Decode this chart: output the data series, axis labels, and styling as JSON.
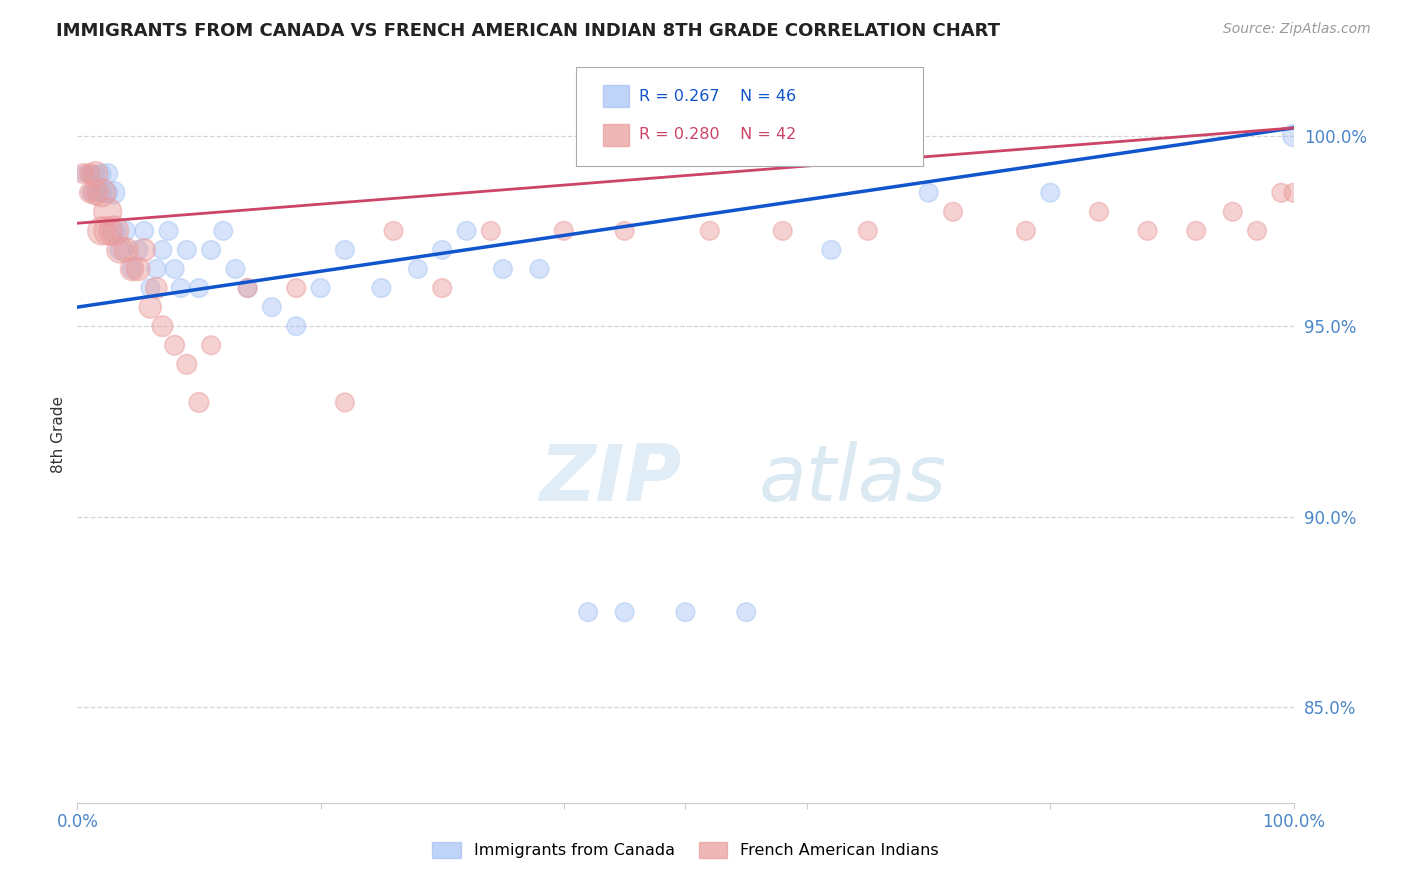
{
  "title": "IMMIGRANTS FROM CANADA VS FRENCH AMERICAN INDIAN 8TH GRADE CORRELATION CHART",
  "source": "Source: ZipAtlas.com",
  "ylabel": "8th Grade",
  "xlim": [
    0.0,
    1.0
  ],
  "ylim": [
    0.825,
    1.018
  ],
  "blue_R": 0.267,
  "blue_N": 46,
  "pink_R": 0.28,
  "pink_N": 42,
  "blue_color": "#a4c2f4",
  "pink_color": "#ea9999",
  "blue_line_color": "#1155cc",
  "pink_line_color": "#cc4466",
  "yticks": [
    0.85,
    0.9,
    0.95,
    1.0
  ],
  "ytick_labels": [
    "85.0%",
    "90.0%",
    "95.0%",
    "100.0%"
  ],
  "blue_scatter_x": [
    0.005,
    0.01,
    0.01,
    0.015,
    0.015,
    0.02,
    0.02,
    0.025,
    0.025,
    0.03,
    0.03,
    0.035,
    0.04,
    0.045,
    0.05,
    0.055,
    0.06,
    0.065,
    0.07,
    0.075,
    0.08,
    0.085,
    0.09,
    0.1,
    0.11,
    0.12,
    0.13,
    0.14,
    0.16,
    0.18,
    0.2,
    0.22,
    0.25,
    0.28,
    0.3,
    0.32,
    0.35,
    0.38,
    0.42,
    0.45,
    0.5,
    0.55,
    0.62,
    0.7,
    0.8,
    1.0
  ],
  "blue_scatter_y": [
    0.99,
    0.985,
    0.99,
    0.985,
    0.99,
    0.985,
    0.99,
    0.985,
    0.99,
    0.985,
    0.975,
    0.97,
    0.975,
    0.965,
    0.97,
    0.975,
    0.96,
    0.965,
    0.97,
    0.975,
    0.965,
    0.96,
    0.97,
    0.96,
    0.97,
    0.975,
    0.965,
    0.96,
    0.955,
    0.95,
    0.96,
    0.97,
    0.96,
    0.965,
    0.97,
    0.975,
    0.965,
    0.965,
    0.875,
    0.875,
    0.875,
    0.875,
    0.97,
    0.985,
    0.985,
    1.0
  ],
  "blue_scatter_sizes": [
    120,
    120,
    120,
    150,
    150,
    180,
    180,
    200,
    200,
    250,
    250,
    200,
    180,
    180,
    180,
    180,
    180,
    180,
    180,
    180,
    180,
    180,
    180,
    180,
    180,
    180,
    180,
    180,
    180,
    180,
    180,
    180,
    180,
    180,
    180,
    180,
    180,
    180,
    180,
    180,
    180,
    180,
    180,
    180,
    180,
    250
  ],
  "pink_scatter_x": [
    0.005,
    0.01,
    0.01,
    0.015,
    0.015,
    0.02,
    0.02,
    0.025,
    0.025,
    0.03,
    0.035,
    0.04,
    0.045,
    0.05,
    0.055,
    0.06,
    0.065,
    0.07,
    0.08,
    0.09,
    0.1,
    0.11,
    0.14,
    0.18,
    0.22,
    0.26,
    0.3,
    0.34,
    0.4,
    0.45,
    0.52,
    0.58,
    0.65,
    0.72,
    0.78,
    0.84,
    0.88,
    0.92,
    0.95,
    0.97,
    0.99,
    1.0
  ],
  "pink_scatter_y": [
    0.99,
    0.99,
    0.985,
    0.99,
    0.985,
    0.985,
    0.975,
    0.98,
    0.975,
    0.975,
    0.97,
    0.97,
    0.965,
    0.965,
    0.97,
    0.955,
    0.96,
    0.95,
    0.945,
    0.94,
    0.93,
    0.945,
    0.96,
    0.96,
    0.93,
    0.975,
    0.96,
    0.975,
    0.975,
    0.975,
    0.975,
    0.975,
    0.975,
    0.98,
    0.975,
    0.98,
    0.975,
    0.975,
    0.98,
    0.975,
    0.985,
    0.985
  ],
  "pink_scatter_sizes": [
    200,
    200,
    200,
    300,
    300,
    400,
    400,
    400,
    400,
    450,
    350,
    300,
    280,
    280,
    250,
    250,
    230,
    220,
    200,
    200,
    200,
    180,
    180,
    180,
    180,
    180,
    180,
    180,
    180,
    180,
    180,
    180,
    180,
    180,
    180,
    180,
    180,
    180,
    180,
    180,
    180,
    180
  ]
}
